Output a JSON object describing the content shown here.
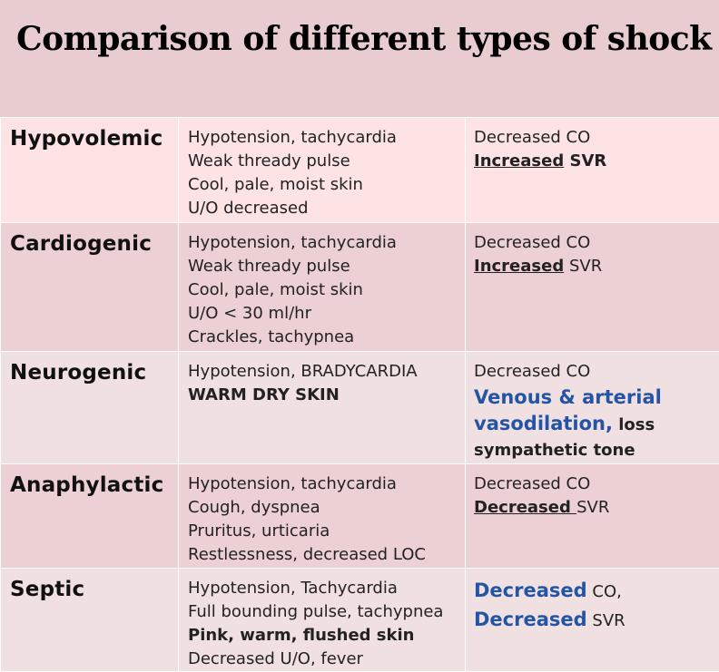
{
  "title": "Comparison of different types of shock",
  "rows": [
    {
      "name": "Hypovolemic",
      "symptoms": [
        "Hypotension, tachycardia",
        "Weak thready pulse",
        "Cool, pale, moist skin",
        "U/O decreased"
      ],
      "hemo_line1": "Decreased CO",
      "hemo_line2_emph": "Increased",
      "hemo_line2_rest": " SVR"
    },
    {
      "name": "Cardiogenic",
      "symptoms": [
        "Hypotension, tachycardia",
        "Weak thready pulse",
        "Cool, pale, moist skin",
        "U/O < 30 ml/hr",
        "Crackles, tachypnea"
      ],
      "hemo_line1": "Decreased CO",
      "hemo_line2_emph": "Increased",
      "hemo_line2_rest": " SVR"
    },
    {
      "name": "Neurogenic",
      "symptoms": [
        "Hypotension, BRADYCARDIA",
        "WARM DRY SKIN"
      ],
      "hemo_line1": "Decreased CO",
      "hemo_line2": "Venous & arterial",
      "hemo_line3_blue": "vasodilation,",
      "hemo_line3_rest": " loss",
      "hemo_line4": "sympathetic tone"
    },
    {
      "name": "Anaphylactic",
      "symptoms": [
        "Hypotension, tachycardia",
        "Cough, dyspnea",
        "Pruritus, urticaria",
        "Restlessness, decreased LOC"
      ],
      "hemo_line1": "Decreased CO",
      "hemo_line2_emph": "Decreased ",
      "hemo_line2_rest": "SVR"
    },
    {
      "name": "Septic",
      "symptoms": [
        "Hypotension, Tachycardia",
        "Full bounding pulse, tachypnea",
        "Pink, warm, flushed skin",
        "Decreased U/O, fever"
      ],
      "hemo_line1_blue": "Decreased",
      "hemo_line1_rest": " CO,",
      "hemo_line2_blue": "Decreased",
      "hemo_line2_rest": " SVR"
    }
  ]
}
